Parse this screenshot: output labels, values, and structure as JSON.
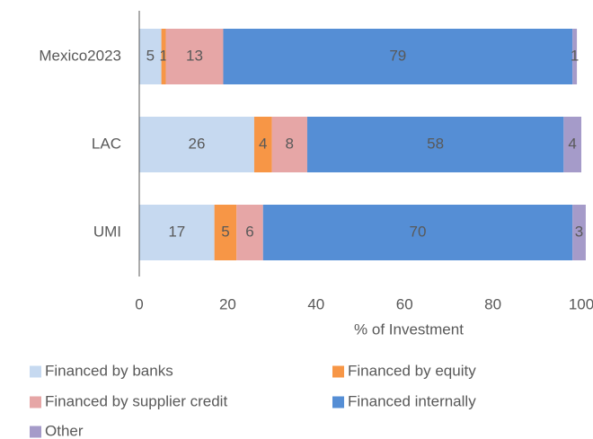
{
  "chart_data": {
    "type": "stacked_barh",
    "categories": [
      "Mexico2023",
      "LAC",
      "UMI"
    ],
    "series": [
      {
        "name": "Financed by banks",
        "color": "#c6d9f0",
        "values": [
          5,
          26,
          17
        ]
      },
      {
        "name": "Financed by equity",
        "color": "#f79646",
        "values": [
          1,
          4,
          5
        ]
      },
      {
        "name": "Financed by supplier credit",
        "color": "#e6a6a6",
        "values": [
          13,
          8,
          6
        ]
      },
      {
        "name": "Financed internally",
        "color": "#558ed5",
        "values": [
          79,
          58,
          70
        ]
      },
      {
        "name": "Other",
        "color": "#a59bc9",
        "values": [
          1,
          4,
          3
        ]
      }
    ],
    "xlabel": "% of Investment",
    "xlim": [
      0,
      100
    ],
    "xticks": [
      0,
      20,
      40,
      60,
      80,
      100
    ],
    "grid": false,
    "legend": "bottom"
  }
}
